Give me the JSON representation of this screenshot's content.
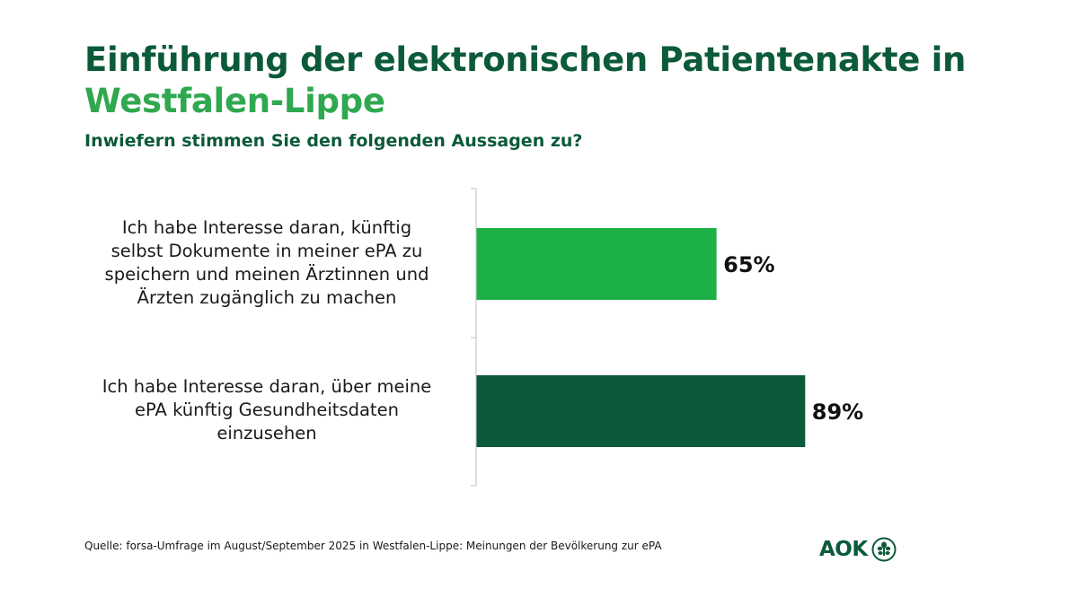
{
  "header": {
    "title_line1": "Einführung der elektronischen Patientenakte in",
    "title_line2": "Westfalen-Lippe",
    "subtitle": "Inwiefern stimmen Sie den folgenden Aussagen zu?"
  },
  "colors": {
    "title": "#0b5a3a",
    "accent": "#2fa84f",
    "bar_light": "#1db046",
    "bar_dark": "#0b5a3a"
  },
  "chart_data": {
    "type": "bar",
    "orientation": "horizontal",
    "title": "Einführung der elektronischen Patientenakte in Westfalen-Lippe",
    "subtitle": "Inwiefern stimmen Sie den folgenden Aussagen zu?",
    "categories": [
      "Ich habe Interesse daran, künftig selbst Dokumente in meiner ePA zu speichern und meinen Ärztinnen und Ärzten zugänglich zu machen",
      "Ich habe Interesse daran, über meine ePA künftig Gesundheitsdaten einzusehen"
    ],
    "values": [
      65,
      89
    ],
    "value_labels": [
      "65%",
      "89%"
    ],
    "unit": "%",
    "xlim": [
      0,
      100
    ],
    "xlabel": "",
    "ylabel": "",
    "grid": false,
    "legend": "none"
  },
  "labels": {
    "cat1_lines": [
      "Ich habe Interesse daran, künftig",
      "selbst Dokumente in meiner ePA zu",
      "speichern und meinen Ärztinnen und",
      "Ärzten zugänglich zu machen"
    ],
    "cat2_lines": [
      "Ich habe Interesse daran, über meine",
      "ePA künftig Gesundheitsdaten",
      "einzusehen"
    ]
  },
  "footer": {
    "source": "Quelle: forsa-Umfrage im August/September 2025 in Westfalen-Lippe: Meinungen der Bevölkerung zur ePA",
    "logo_text": "AOK"
  }
}
